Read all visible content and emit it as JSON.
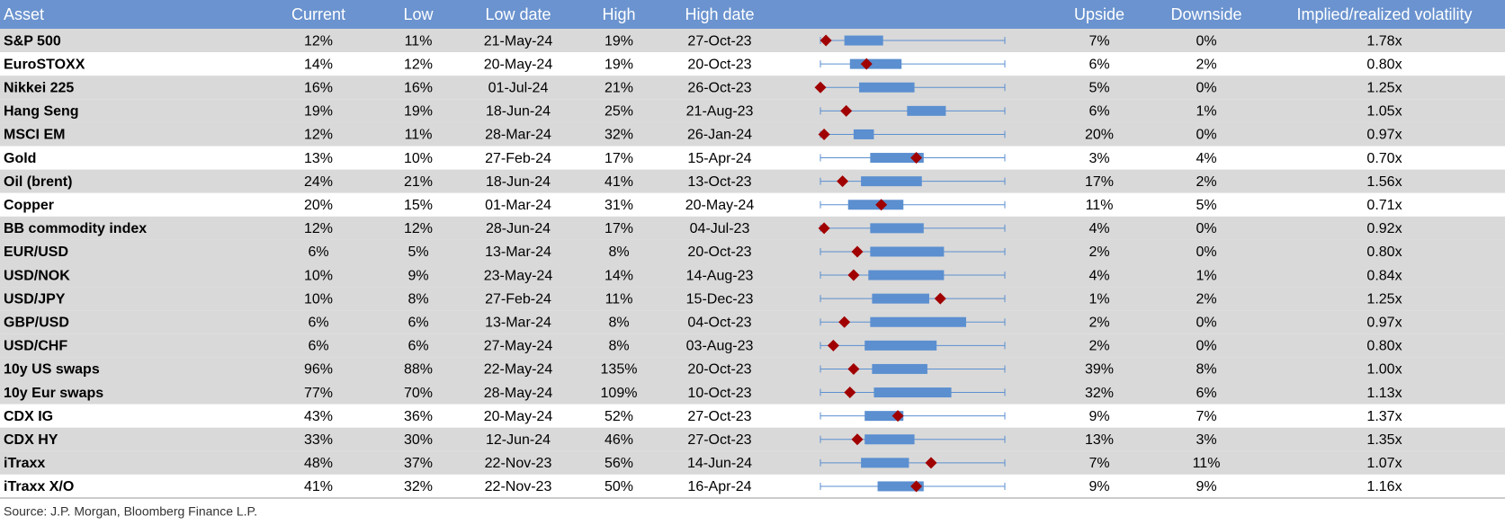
{
  "header": {
    "columns": [
      "Asset",
      "Current",
      "Low",
      "Low date",
      "High",
      "High date",
      "Upside",
      "Downside",
      "Implied/realized volatility"
    ]
  },
  "range_xlim": [
    0,
    100
  ],
  "rows": [
    {
      "cells": [
        "S&P 500",
        "12%",
        "11%",
        "21-May-24",
        "19%",
        "27-Oct-23",
        "7%",
        "0%",
        "1.78x"
      ],
      "box": [
        13,
        34
      ],
      "marker": 3,
      "shaded": true
    },
    {
      "cells": [
        "EuroSTOXX",
        "14%",
        "12%",
        "20-May-24",
        "19%",
        "20-Oct-23",
        "6%",
        "2%",
        "0.80x"
      ],
      "box": [
        16,
        44
      ],
      "marker": 25,
      "shaded": false
    },
    {
      "cells": [
        "Nikkei 225",
        "16%",
        "16%",
        "01-Jul-24",
        "21%",
        "26-Oct-23",
        "5%",
        "0%",
        "1.25x"
      ],
      "box": [
        21,
        51
      ],
      "marker": 0,
      "shaded": true
    },
    {
      "cells": [
        "Hang Seng",
        "19%",
        "19%",
        "18-Jun-24",
        "25%",
        "21-Aug-23",
        "6%",
        "1%",
        "1.05x"
      ],
      "box": [
        47,
        68
      ],
      "marker": 14,
      "shaded": true
    },
    {
      "cells": [
        "MSCI EM",
        "12%",
        "11%",
        "28-Mar-24",
        "32%",
        "26-Jan-24",
        "20%",
        "0%",
        "0.97x"
      ],
      "box": [
        18,
        29
      ],
      "marker": 2,
      "shaded": true
    },
    {
      "cells": [
        "Gold",
        "13%",
        "10%",
        "27-Feb-24",
        "17%",
        "15-Apr-24",
        "3%",
        "4%",
        "0.70x"
      ],
      "box": [
        27,
        56
      ],
      "marker": 52,
      "shaded": false
    },
    {
      "cells": [
        "Oil (brent)",
        "24%",
        "21%",
        "18-Jun-24",
        "41%",
        "13-Oct-23",
        "17%",
        "2%",
        "1.56x"
      ],
      "box": [
        22,
        55
      ],
      "marker": 12,
      "shaded": true
    },
    {
      "cells": [
        "Copper",
        "20%",
        "15%",
        "01-Mar-24",
        "31%",
        "20-May-24",
        "11%",
        "5%",
        "0.71x"
      ],
      "box": [
        15,
        45
      ],
      "marker": 33,
      "shaded": false
    },
    {
      "cells": [
        "BB commodity index",
        "12%",
        "12%",
        "28-Jun-24",
        "17%",
        "04-Jul-23",
        "4%",
        "0%",
        "0.92x"
      ],
      "box": [
        27,
        56
      ],
      "marker": 2,
      "shaded": true
    },
    {
      "cells": [
        "EUR/USD",
        "6%",
        "5%",
        "13-Mar-24",
        "8%",
        "20-Oct-23",
        "2%",
        "0%",
        "0.80x"
      ],
      "box": [
        27,
        67
      ],
      "marker": 20,
      "shaded": true
    },
    {
      "cells": [
        "USD/NOK",
        "10%",
        "9%",
        "23-May-24",
        "14%",
        "14-Aug-23",
        "4%",
        "1%",
        "0.84x"
      ],
      "box": [
        26,
        67
      ],
      "marker": 18,
      "shaded": true
    },
    {
      "cells": [
        "USD/JPY",
        "10%",
        "8%",
        "27-Feb-24",
        "11%",
        "15-Dec-23",
        "1%",
        "2%",
        "1.25x"
      ],
      "box": [
        28,
        59
      ],
      "marker": 65,
      "shaded": true
    },
    {
      "cells": [
        "GBP/USD",
        "6%",
        "6%",
        "13-Mar-24",
        "8%",
        "04-Oct-23",
        "2%",
        "0%",
        "0.97x"
      ],
      "box": [
        27,
        79
      ],
      "marker": 13,
      "shaded": true
    },
    {
      "cells": [
        "USD/CHF",
        "6%",
        "6%",
        "27-May-24",
        "8%",
        "03-Aug-23",
        "2%",
        "0%",
        "0.80x"
      ],
      "box": [
        24,
        63
      ],
      "marker": 7,
      "shaded": true
    },
    {
      "cells": [
        "10y US swaps",
        "96%",
        "88%",
        "22-May-24",
        "135%",
        "20-Oct-23",
        "39%",
        "8%",
        "1.00x"
      ],
      "box": [
        28,
        58
      ],
      "marker": 18,
      "shaded": true
    },
    {
      "cells": [
        "10y Eur swaps",
        "77%",
        "70%",
        "28-May-24",
        "109%",
        "10-Oct-23",
        "32%",
        "6%",
        "1.13x"
      ],
      "box": [
        29,
        71
      ],
      "marker": 16,
      "shaded": true
    },
    {
      "cells": [
        "CDX IG",
        "43%",
        "36%",
        "20-May-24",
        "52%",
        "27-Oct-23",
        "9%",
        "7%",
        "1.37x"
      ],
      "box": [
        24,
        45
      ],
      "marker": 42,
      "shaded": false
    },
    {
      "cells": [
        "CDX HY",
        "33%",
        "30%",
        "12-Jun-24",
        "46%",
        "27-Oct-23",
        "13%",
        "3%",
        "1.35x"
      ],
      "box": [
        24,
        51
      ],
      "marker": 20,
      "shaded": true
    },
    {
      "cells": [
        "iTraxx",
        "48%",
        "37%",
        "22-Nov-23",
        "56%",
        "14-Jun-24",
        "7%",
        "11%",
        "1.07x"
      ],
      "box": [
        22,
        48
      ],
      "marker": 60,
      "shaded": true
    },
    {
      "cells": [
        "iTraxx X/O",
        "41%",
        "32%",
        "22-Nov-23",
        "50%",
        "16-Apr-24",
        "9%",
        "9%",
        "1.16x"
      ],
      "box": [
        31,
        56
      ],
      "marker": 52,
      "shaded": false
    }
  ],
  "footer": {
    "source": "Source: J.P. Morgan, Bloomberg Finance L.P."
  }
}
